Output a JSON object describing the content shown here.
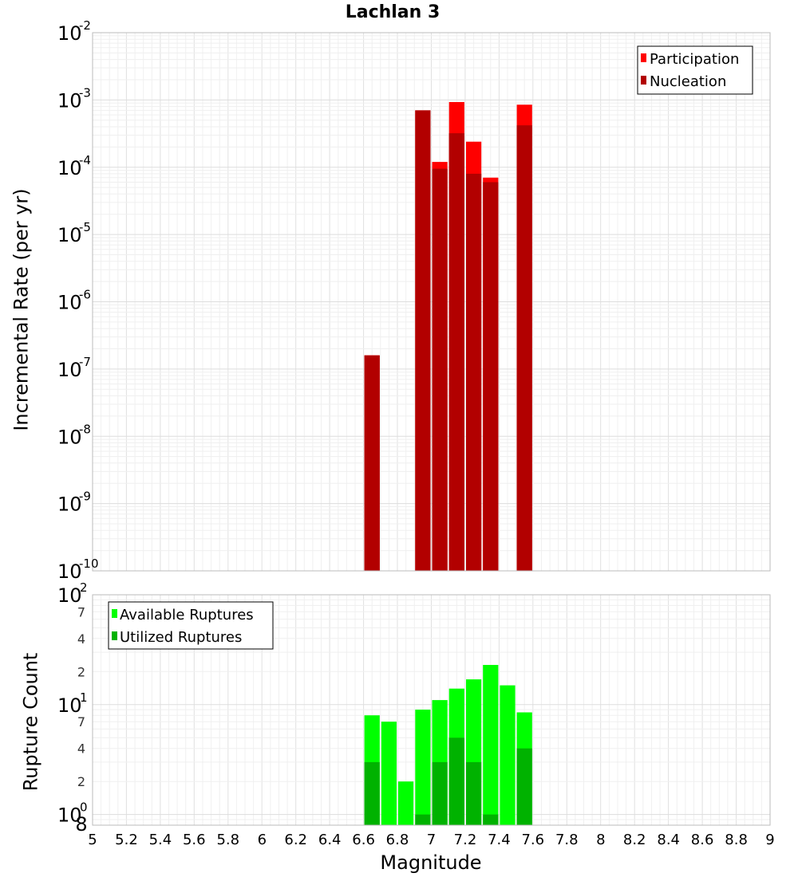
{
  "chart_data": [
    {
      "type": "bar",
      "title": "Lachlan 3",
      "ylabel": "Incremental Rate (per yr)",
      "yscale": "log",
      "ylim": [
        1e-10,
        0.01
      ],
      "xlim": [
        5,
        9
      ],
      "bar_width": 0.1,
      "y_ticks": [
        {
          "base": "10",
          "exp": "-10",
          "value": 1e-10
        },
        {
          "base": "10",
          "exp": "-9",
          "value": 1e-09
        },
        {
          "base": "10",
          "exp": "-8",
          "value": 1e-08
        },
        {
          "base": "10",
          "exp": "-7",
          "value": 1e-07
        },
        {
          "base": "10",
          "exp": "-6",
          "value": 1e-06
        },
        {
          "base": "10",
          "exp": "-5",
          "value": 1e-05
        },
        {
          "base": "10",
          "exp": "-4",
          "value": 0.0001
        },
        {
          "base": "10",
          "exp": "-3",
          "value": 0.001
        },
        {
          "base": "10",
          "exp": "-2",
          "value": 0.01
        }
      ],
      "legend_placement": "top-right",
      "grid": true,
      "series": [
        {
          "name": "Participation",
          "color": "#ff0000",
          "x": [
            6.65,
            6.95,
            7.05,
            7.15,
            7.25,
            7.35,
            7.55
          ],
          "values": [
            1.6e-07,
            0.0007,
            0.00012,
            0.00093,
            0.00024,
            7e-05,
            0.00085
          ]
        },
        {
          "name": "Nucleation",
          "color": "#b20000",
          "x": [
            6.65,
            6.95,
            7.05,
            7.15,
            7.25,
            7.35,
            7.55
          ],
          "values": [
            1.6e-07,
            0.0007,
            9.5e-05,
            0.00032,
            8e-05,
            6e-05,
            0.00042
          ]
        }
      ]
    },
    {
      "type": "bar",
      "xlabel": "Magnitude",
      "ylabel": "Rupture Count",
      "yscale": "log",
      "ylim": [
        0.8,
        100
      ],
      "xlim": [
        5,
        9
      ],
      "bar_width": 0.1,
      "x_ticks": [
        "5",
        "5.2",
        "5.4",
        "5.6",
        "5.8",
        "6",
        "6.2",
        "6.4",
        "6.6",
        "6.8",
        "7",
        "7.2",
        "7.4",
        "7.6",
        "7.8",
        "8",
        "8.2",
        "8.4",
        "8.6",
        "8.8",
        "9"
      ],
      "y_major_ticks": [
        {
          "base": "10",
          "exp": "0",
          "value": 1
        },
        {
          "base": "10",
          "exp": "1",
          "value": 10
        },
        {
          "base": "10",
          "exp": "2",
          "value": 100
        }
      ],
      "y_minor_ticks": [
        {
          "label": "8",
          "value": 0.8
        },
        {
          "label": "2",
          "value": 2
        },
        {
          "label": "4",
          "value": 4
        },
        {
          "label": "7",
          "value": 7
        },
        {
          "label": "2",
          "value": 20
        },
        {
          "label": "4",
          "value": 40
        },
        {
          "label": "7",
          "value": 70
        }
      ],
      "legend_placement": "top-left",
      "grid": true,
      "series": [
        {
          "name": "Available Ruptures",
          "color": "#00ff00",
          "x": [
            6.65,
            6.75,
            6.85,
            6.95,
            7.05,
            7.15,
            7.25,
            7.35,
            7.45,
            7.55
          ],
          "values": [
            8,
            7,
            2,
            9,
            11,
            14,
            17,
            23,
            15,
            8.5
          ]
        },
        {
          "name": "Utilized Ruptures",
          "color": "#00b200",
          "x": [
            6.65,
            7.05,
            6.95,
            7.15,
            7.25,
            7.35,
            7.55
          ],
          "values": [
            3,
            3,
            1,
            5,
            3,
            1,
            4
          ]
        }
      ]
    }
  ]
}
